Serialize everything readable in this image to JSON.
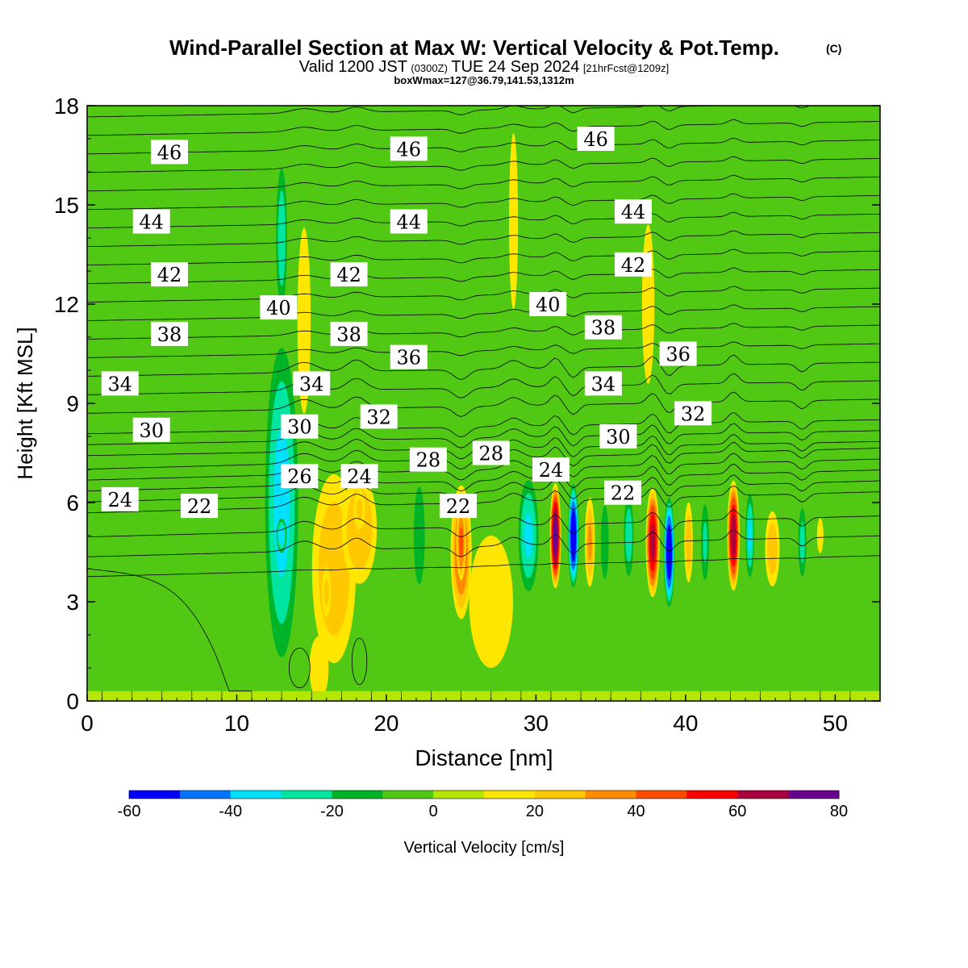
{
  "chart_data": {
    "type": "heatmap",
    "title": "Wind-Parallel Section at Max W: Vertical Velocity & Pot.Temp.",
    "title_mark": "(C)",
    "subtitle_main": "Valid 1200 JST",
    "subtitle_utc": "(0300Z)",
    "subtitle_date": "TUE 24 Sep 2024",
    "subtitle_fcst": "[21hrFcst@1209z]",
    "subtitle2": "boxWmax=127@36.79,141.53,1312m",
    "xlabel": "Distance [nm]",
    "ylabel": "Height [Kft MSL]",
    "xlim": [
      0,
      53
    ],
    "ylim": [
      0,
      18
    ],
    "x_ticks": [
      0,
      10,
      20,
      30,
      40,
      50
    ],
    "y_ticks": [
      0,
      3,
      6,
      9,
      12,
      15,
      18
    ],
    "colorbar": {
      "label": "Vertical Velocity [cm/s]",
      "ticks": [
        -60,
        -40,
        -20,
        0,
        20,
        40,
        60,
        80
      ],
      "bins": [
        -60,
        -50,
        -40,
        -30,
        -20,
        -10,
        0,
        10,
        20,
        30,
        40,
        50,
        60,
        70,
        80
      ],
      "colors": [
        "#0000ff",
        "#0073ff",
        "#00e0ff",
        "#00e6a0",
        "#00b428",
        "#50c814",
        "#b4e600",
        "#ffe600",
        "#ffc800",
        "#ff8c00",
        "#ff4b00",
        "#ff0000",
        "#aa0040",
        "#6a0090"
      ]
    },
    "background_color": "#50c814",
    "ground_top_kft": 0.3,
    "w_cells": [
      {
        "x": 13,
        "z": 6.0,
        "sx": 1.3,
        "sz": 5.5,
        "w": -32
      },
      {
        "x": 13,
        "z": 5.0,
        "sx": 0.4,
        "sz": 0.6,
        "w": -35
      },
      {
        "x": 13,
        "z": 14.0,
        "sx": 0.45,
        "sz": 2.6,
        "w": -25
      },
      {
        "x": 14.5,
        "z": 11.5,
        "sx": 0.6,
        "sz": 3.8,
        "w": 18
      },
      {
        "x": 16.5,
        "z": 4.0,
        "sx": 1.8,
        "sz": 3.5,
        "w": 26
      },
      {
        "x": 18.2,
        "z": 5.2,
        "sx": 1.4,
        "sz": 2.0,
        "w": 28
      },
      {
        "x": 18.2,
        "z": 5.8,
        "sx": 0.5,
        "sz": 0.8,
        "w": 20
      },
      {
        "x": 16.0,
        "z": 3.3,
        "sx": 0.4,
        "sz": 1.0,
        "w": 20
      },
      {
        "x": 15.5,
        "z": 1.0,
        "sx": 1.2,
        "sz": 1.8,
        "w": 10
      },
      {
        "x": 21.0,
        "z": 4.5,
        "sx": 0.6,
        "sz": 2.5,
        "w": -8
      },
      {
        "x": 22.2,
        "z": 5.0,
        "sx": 0.5,
        "sz": 2.0,
        "w": -18
      },
      {
        "x": 25.0,
        "z": 4.5,
        "sx": 0.8,
        "sz": 2.3,
        "w": 40
      },
      {
        "x": 25.0,
        "z": 4.8,
        "sx": 0.35,
        "sz": 1.3,
        "w": 42
      },
      {
        "x": 27.0,
        "z": 3.0,
        "sx": 2.2,
        "sz": 3.0,
        "w": 14
      },
      {
        "x": 28.5,
        "z": 14.5,
        "sx": 0.45,
        "sz": 4.0,
        "w": 14
      },
      {
        "x": 29.5,
        "z": 5.0,
        "sx": 0.8,
        "sz": 2.0,
        "w": -30
      },
      {
        "x": 31.3,
        "z": 5.0,
        "sx": 0.4,
        "sz": 1.7,
        "w": 75
      },
      {
        "x": 32.5,
        "z": 5.0,
        "sx": 0.4,
        "sz": 1.7,
        "w": -60
      },
      {
        "x": 33.6,
        "z": 4.8,
        "sx": 0.4,
        "sz": 1.6,
        "w": 30
      },
      {
        "x": 34.6,
        "z": 4.8,
        "sx": 0.35,
        "sz": 1.5,
        "w": -18
      },
      {
        "x": 36.2,
        "z": 5.0,
        "sx": 0.4,
        "sz": 1.5,
        "w": -25
      },
      {
        "x": 37.8,
        "z": 4.8,
        "sx": 0.5,
        "sz": 1.8,
        "w": 62
      },
      {
        "x": 38.9,
        "z": 4.5,
        "sx": 0.4,
        "sz": 1.8,
        "w": -60
      },
      {
        "x": 40.2,
        "z": 4.8,
        "sx": 0.35,
        "sz": 1.5,
        "w": 25
      },
      {
        "x": 41.3,
        "z": 4.8,
        "sx": 0.35,
        "sz": 1.5,
        "w": -20
      },
      {
        "x": 43.2,
        "z": 5.0,
        "sx": 0.45,
        "sz": 1.8,
        "w": 65
      },
      {
        "x": 44.3,
        "z": 5.0,
        "sx": 0.35,
        "sz": 1.5,
        "w": -30
      },
      {
        "x": 45.8,
        "z": 4.6,
        "sx": 0.6,
        "sz": 1.4,
        "w": 25
      },
      {
        "x": 47.8,
        "z": 4.8,
        "sx": 0.35,
        "sz": 1.3,
        "w": -22
      },
      {
        "x": 49.0,
        "z": 5.0,
        "sx": 0.4,
        "sz": 1.0,
        "w": 10
      },
      {
        "x": 37.5,
        "z": 12.0,
        "sx": 0.6,
        "sz": 3.5,
        "w": 15
      },
      {
        "x": 5,
        "z": 10.5,
        "sx": 3.5,
        "sz": 5.0,
        "w": 5
      },
      {
        "x": 6,
        "z": 2.2,
        "sx": 4.5,
        "sz": 1.8,
        "w": 5
      },
      {
        "x": 3,
        "z": 16.0,
        "sx": 2.5,
        "sz": 2.0,
        "w": 4
      },
      {
        "x": 21.5,
        "z": 15.5,
        "sx": 1.5,
        "sz": 3.5,
        "w": 4
      },
      {
        "x": 25,
        "z": 10.5,
        "sx": 0.8,
        "sz": 4.0,
        "w": -6
      },
      {
        "x": 34.5,
        "z": 16.0,
        "sx": 1.0,
        "sz": 3.5,
        "w": 5
      },
      {
        "x": 47,
        "z": 13.0,
        "sx": 3.0,
        "sz": 3.5,
        "w": -4
      },
      {
        "x": 11,
        "z": 9.0,
        "sx": 1.2,
        "sz": 4.0,
        "w": -6
      }
    ],
    "theta_labels": [
      {
        "x": 5.5,
        "z": 16.6,
        "text": "46"
      },
      {
        "x": 21.5,
        "z": 16.7,
        "text": "46"
      },
      {
        "x": 34.0,
        "z": 17.0,
        "text": "46"
      },
      {
        "x": 4.3,
        "z": 14.5,
        "text": "44"
      },
      {
        "x": 21.5,
        "z": 14.5,
        "text": "44"
      },
      {
        "x": 36.5,
        "z": 14.8,
        "text": "44"
      },
      {
        "x": 5.5,
        "z": 12.9,
        "text": "42"
      },
      {
        "x": 17.5,
        "z": 12.9,
        "text": "42"
      },
      {
        "x": 36.5,
        "z": 13.2,
        "text": "42"
      },
      {
        "x": 12.8,
        "z": 11.9,
        "text": "40"
      },
      {
        "x": 30.8,
        "z": 12.0,
        "text": "40"
      },
      {
        "x": 5.5,
        "z": 11.1,
        "text": "38"
      },
      {
        "x": 17.5,
        "z": 11.1,
        "text": "38"
      },
      {
        "x": 34.5,
        "z": 11.3,
        "text": "38"
      },
      {
        "x": 21.5,
        "z": 10.4,
        "text": "36"
      },
      {
        "x": 39.5,
        "z": 10.5,
        "text": "36"
      },
      {
        "x": 2.2,
        "z": 9.6,
        "text": "34"
      },
      {
        "x": 15.0,
        "z": 9.6,
        "text": "34"
      },
      {
        "x": 34.5,
        "z": 9.6,
        "text": "34"
      },
      {
        "x": 19.5,
        "z": 8.6,
        "text": "32"
      },
      {
        "x": 40.5,
        "z": 8.7,
        "text": "32"
      },
      {
        "x": 4.3,
        "z": 8.2,
        "text": "30"
      },
      {
        "x": 14.2,
        "z": 8.3,
        "text": "30"
      },
      {
        "x": 35.5,
        "z": 8.0,
        "text": "30"
      },
      {
        "x": 22.8,
        "z": 7.3,
        "text": "28"
      },
      {
        "x": 27.0,
        "z": 7.5,
        "text": "28"
      },
      {
        "x": 14.2,
        "z": 6.8,
        "text": "26"
      },
      {
        "x": 18.2,
        "z": 6.8,
        "text": "24"
      },
      {
        "x": 31.0,
        "z": 7.0,
        "text": "24"
      },
      {
        "x": 2.2,
        "z": 6.1,
        "text": "24"
      },
      {
        "x": 7.5,
        "z": 5.9,
        "text": "22"
      },
      {
        "x": 24.8,
        "z": 5.9,
        "text": "22"
      },
      {
        "x": 35.8,
        "z": 6.3,
        "text": "22"
      }
    ]
  }
}
